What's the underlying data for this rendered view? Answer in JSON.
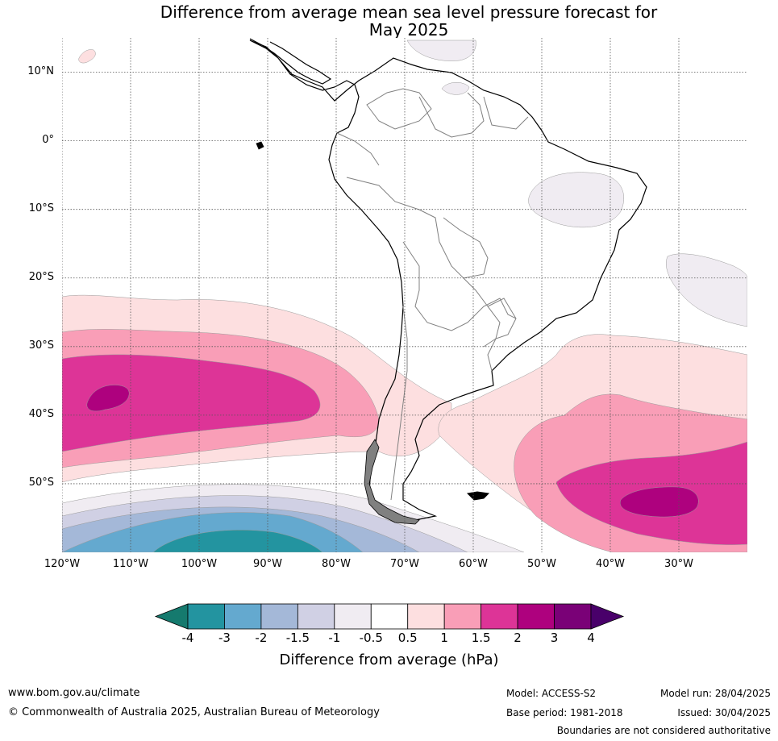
{
  "title_line1": "Difference from average mean sea level pressure forecast for",
  "title_line2": "May 2025",
  "map": {
    "lat_labels": [
      "10°N",
      "0°",
      "10°S",
      "20°S",
      "30°S",
      "40°S",
      "50°S"
    ],
    "lon_labels": [
      "120°W",
      "110°W",
      "100°W",
      "90°W",
      "80°W",
      "70°W",
      "60°W",
      "50°W",
      "40°W",
      "30°W"
    ],
    "extent": {
      "lon_min": -120,
      "lon_max": -20,
      "lat_min": -60,
      "lat_max": 15
    },
    "gridlines": true
  },
  "colorbar": {
    "title": "Difference from average (hPa)",
    "ticks": [
      "-4",
      "-3",
      "-2",
      "-1.5",
      "-1",
      "-0.5",
      "0.5",
      "1",
      "1.5",
      "2",
      "3",
      "4"
    ],
    "colors": [
      "#157a6e",
      "#2394a0",
      "#64a9cf",
      "#a4b8d8",
      "#d0d0e4",
      "#f0ecf2",
      "#ffffff",
      "#fddfe0",
      "#f99eb7",
      "#dd3497",
      "#ae017e",
      "#7a0177",
      "#49006a"
    ]
  },
  "footer": {
    "url": "www.bom.gov.au/climate",
    "copyright": "© Commonwealth of Australia 2025, Australian Bureau of Meteorology",
    "model": "Model: ACCESS-S2",
    "base_period": "Base period: 1981-2018",
    "model_run": "Model run: 28/04/2025",
    "issued": "Issued: 30/04/2025",
    "disclaimer": "Boundaries are not considered authoritative"
  }
}
